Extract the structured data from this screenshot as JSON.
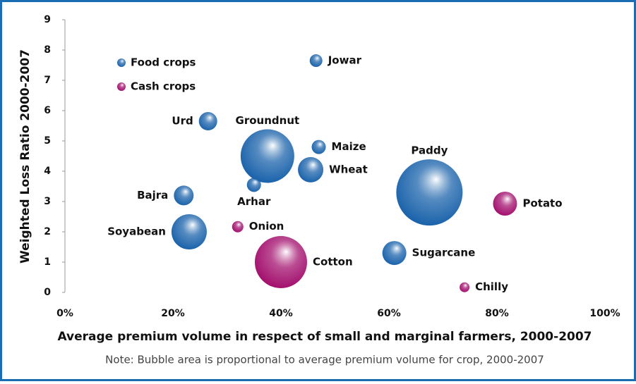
{
  "chart_data": {
    "type": "bubble",
    "xlabel": "Average premium volume in respect of small and marginal farmers, 2000-2007",
    "ylabel": "Weighted Loss Ratio 2000-2007",
    "note": "Note: Bubble area is proportional to average premium volume for crop, 2000-2007",
    "xlim": [
      0,
      100
    ],
    "ylim": [
      0,
      9
    ],
    "xticks": [
      {
        "value": 0,
        "label": "0%"
      },
      {
        "value": 20,
        "label": "20%"
      },
      {
        "value": 40,
        "label": "40%"
      },
      {
        "value": 60,
        "label": "60%"
      },
      {
        "value": 80,
        "label": "80%"
      },
      {
        "value": 100,
        "label": "100%"
      }
    ],
    "yticks": [
      0,
      1,
      2,
      3,
      4,
      5,
      6,
      7,
      8,
      9
    ],
    "grid": false,
    "legend": "upper left",
    "series": [
      {
        "name": "Food crops",
        "color": "#1b63ab",
        "labels": [
          "Jowar",
          "Urd",
          "Groundnut",
          "Maize",
          "Wheat",
          "Paddy",
          "Bajra",
          "Arhar",
          "Soyabean",
          "Sugarcane"
        ],
        "x": [
          46.5,
          26.5,
          37.5,
          47,
          45.5,
          67.5,
          22,
          35,
          23,
          61
        ],
        "values": [
          7.65,
          5.65,
          4.5,
          4.8,
          4.05,
          3.3,
          3.2,
          3.55,
          2.0,
          1.3
        ],
        "sizes": [
          81,
          169,
          1444,
          100,
          324,
          2209,
          196,
          100,
          625,
          289
        ]
      },
      {
        "name": "Cash crops",
        "color": "#a3106e",
        "labels": [
          "Potato",
          "Onion",
          "Cotton",
          "Chilly"
        ],
        "x": [
          81.5,
          32,
          40,
          74
        ],
        "values": [
          2.93,
          2.17,
          1.0,
          0.17
        ],
        "sizes": [
          289,
          64,
          1369,
          49
        ]
      }
    ]
  }
}
